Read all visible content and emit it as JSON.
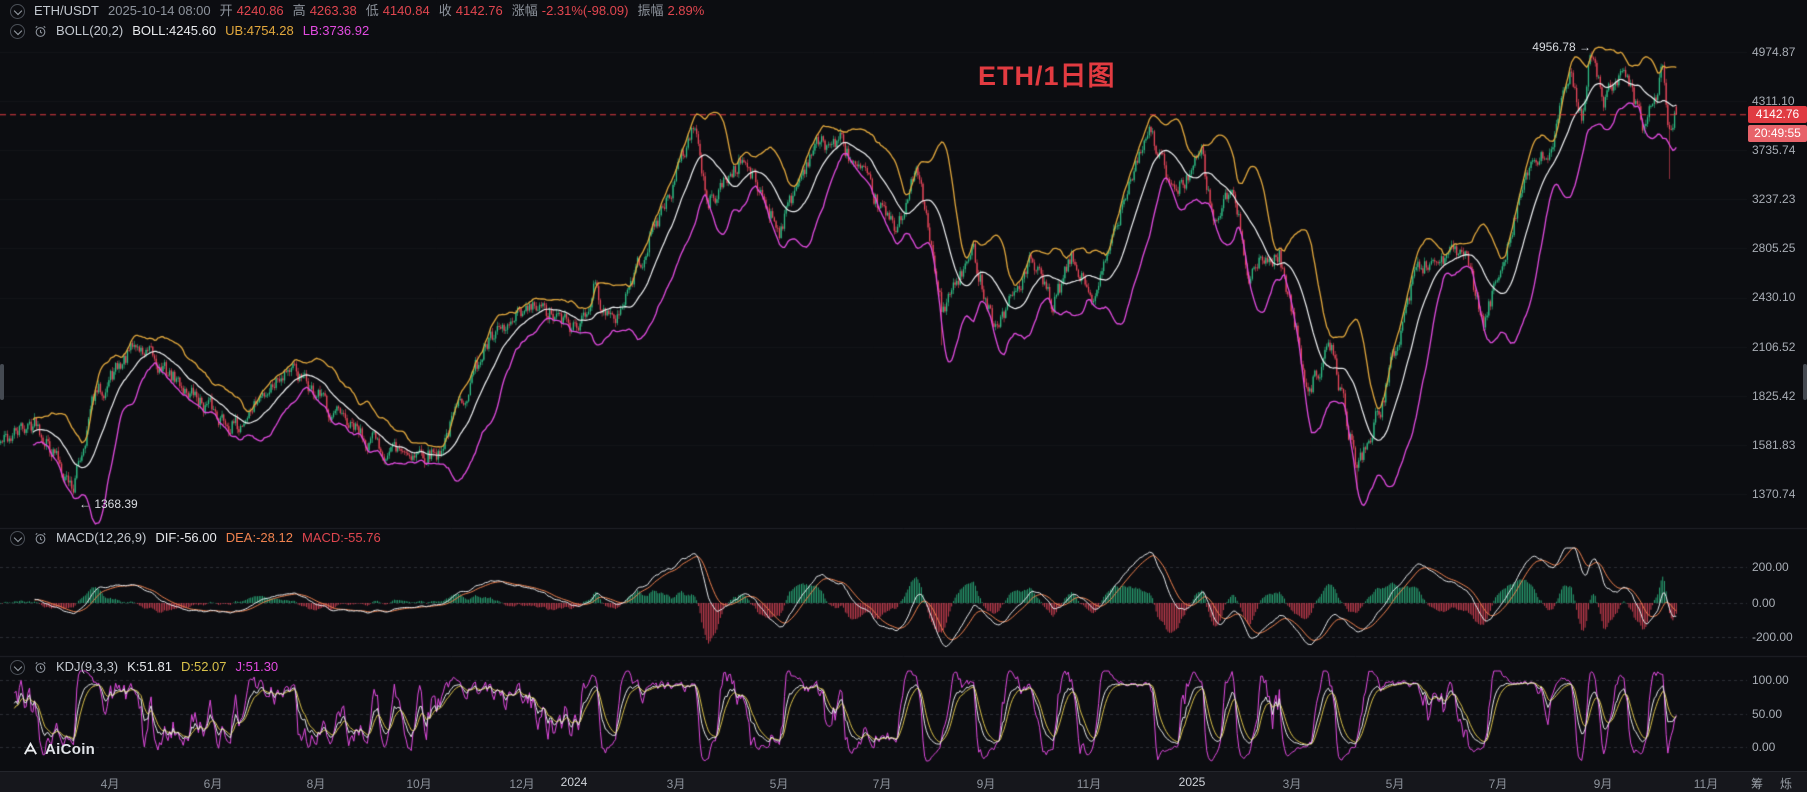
{
  "header": {
    "symbol": "ETH/USDT",
    "datetime": "2025-10-14 08:00",
    "fields": [
      {
        "label": "开",
        "value": "4240.86"
      },
      {
        "label": "高",
        "value": "4263.38"
      },
      {
        "label": "低",
        "value": "4140.84"
      },
      {
        "label": "收",
        "value": "4142.76"
      },
      {
        "label": "涨幅",
        "value": "-2.31%(-98.09)"
      },
      {
        "label": "振幅",
        "value": "2.89%"
      }
    ]
  },
  "boll": {
    "name": "BOLL(20,2)",
    "mid": "BOLL:4245.60",
    "ub": "UB:4754.28",
    "lb": "LB:3736.92"
  },
  "macd": {
    "name": "MACD(12,26,9)",
    "dif": "DIF:-56.00",
    "dea": "DEA:-28.12",
    "hist": "MACD:-55.76",
    "axis": [
      "200.00",
      "0.00",
      "-200.00"
    ]
  },
  "kdj": {
    "name": "KDJ(9,3,3)",
    "k": "K:51.81",
    "d": "D:52.07",
    "j": "J:51.30",
    "axis": [
      "100.00",
      "50.00",
      "0.00"
    ]
  },
  "title": "ETH/1日图",
  "price_axis": {
    "labels": [
      "4974.87",
      "4311.10",
      "3735.74",
      "3237.23",
      "2805.25",
      "2430.10",
      "2106.52",
      "1825.42",
      "1581.83",
      "1370.74"
    ],
    "current_price": "4142.76",
    "countdown": "20:49:55"
  },
  "markers": {
    "high_label": "4956.78 →",
    "low_label": "← 1368.39"
  },
  "time_axis": {
    "labels": [
      {
        "text": "4月",
        "date": "2023-04-01"
      },
      {
        "text": "6月",
        "date": "2023-06-01"
      },
      {
        "text": "8月",
        "date": "2023-08-01"
      },
      {
        "text": "10月",
        "date": "2023-10-01"
      },
      {
        "text": "12月",
        "date": "2023-12-01"
      },
      {
        "text": "2024",
        "date": "2024-01-01"
      },
      {
        "text": "3月",
        "date": "2024-03-01"
      },
      {
        "text": "5月",
        "date": "2024-05-01"
      },
      {
        "text": "7月",
        "date": "2024-07-01"
      },
      {
        "text": "9月",
        "date": "2024-09-01"
      },
      {
        "text": "11月",
        "date": "2024-11-01"
      },
      {
        "text": "2025",
        "date": "2025-01-01"
      },
      {
        "text": "3月",
        "date": "2025-03-01"
      },
      {
        "text": "5月",
        "date": "2025-05-01"
      },
      {
        "text": "7月",
        "date": "2025-07-01"
      },
      {
        "text": "9月",
        "date": "2025-09-01"
      },
      {
        "text": "11月",
        "date": "2025-11-01"
      }
    ],
    "tools": [
      "筹",
      "烁"
    ]
  },
  "logo": {
    "text": "AiCoin"
  },
  "chart_data": {
    "type": "candlestick",
    "title": "ETH/1日图",
    "symbol": "ETH/USDT",
    "interval": "1日",
    "scale": "log",
    "date_range": [
      "2023-01-26",
      "2025-10-14"
    ],
    "y_axis_ticks": [
      4974.87,
      4311.1,
      3735.74,
      3237.23,
      2805.25,
      2430.1,
      2106.52,
      1825.42,
      1581.83,
      1370.74
    ],
    "current_candle": {
      "open": 4240.86,
      "high": 4263.38,
      "low": 4140.84,
      "close": 4142.76,
      "change_pct": -2.31,
      "change_abs": -98.09,
      "amplitude_pct": 2.89
    },
    "marked_high": {
      "date": "2025-08-24",
      "price": 4956.78
    },
    "marked_low": {
      "date": "2023-03-10",
      "price": 1368.39
    },
    "indicators": {
      "boll": {
        "params": [
          20,
          2
        ],
        "mid": 4245.6,
        "ub": 4754.28,
        "lb": 3736.92
      },
      "macd": {
        "params": [
          12,
          26,
          9
        ],
        "dif": -56.0,
        "dea": -28.12,
        "macd": -55.76,
        "axis": [
          200,
          0,
          -200
        ]
      },
      "kdj": {
        "params": [
          9,
          3,
          3
        ],
        "k": 51.81,
        "d": 52.07,
        "j": 51.3,
        "axis": [
          100,
          50,
          0
        ]
      }
    },
    "price_anchors": [
      [
        "2023-01-26",
        1590
      ],
      [
        "2023-02-16",
        1700
      ],
      [
        "2023-03-10",
        1400
      ],
      [
        "2023-03-22",
        1810
      ],
      [
        "2023-04-16",
        2110
      ],
      [
        "2023-05-25",
        1790
      ],
      [
        "2023-06-15",
        1660
      ],
      [
        "2023-07-14",
        2000
      ],
      [
        "2023-08-17",
        1680
      ],
      [
        "2023-09-11",
        1560
      ],
      [
        "2023-10-12",
        1545
      ],
      [
        "2023-11-09",
        2110
      ],
      [
        "2023-12-08",
        2360
      ],
      [
        "2024-01-03",
        2210
      ],
      [
        "2024-01-12",
        2520
      ],
      [
        "2024-01-23",
        2240
      ],
      [
        "2024-02-28",
        3380
      ],
      [
        "2024-03-12",
        4070
      ],
      [
        "2024-03-19",
        3180
      ],
      [
        "2024-04-09",
        3650
      ],
      [
        "2024-05-01",
        2970
      ],
      [
        "2024-05-21",
        3790
      ],
      [
        "2024-06-06",
        3830
      ],
      [
        "2024-07-08",
        2960
      ],
      [
        "2024-07-22",
        3520
      ],
      [
        "2024-08-05",
        2340
      ],
      [
        "2024-08-24",
        2770
      ],
      [
        "2024-09-06",
        2230
      ],
      [
        "2024-09-27",
        2690
      ],
      [
        "2024-10-10",
        2370
      ],
      [
        "2024-10-21",
        2720
      ],
      [
        "2024-11-04",
        2400
      ],
      [
        "2024-11-23",
        3400
      ],
      [
        "2024-12-06",
        4000
      ],
      [
        "2024-12-20",
        3280
      ],
      [
        "2025-01-06",
        3680
      ],
      [
        "2025-01-13",
        3020
      ],
      [
        "2025-01-24",
        3320
      ],
      [
        "2025-02-03",
        2630
      ],
      [
        "2025-02-21",
        2760
      ],
      [
        "2025-03-10",
        1870
      ],
      [
        "2025-03-24",
        2090
      ],
      [
        "2025-04-08",
        1480
      ],
      [
        "2025-04-22",
        1760
      ],
      [
        "2025-05-13",
        2650
      ],
      [
        "2025-06-10",
        2790
      ],
      [
        "2025-06-22",
        2230
      ],
      [
        "2025-07-17",
        3480
      ],
      [
        "2025-07-31",
        3700
      ],
      [
        "2025-08-13",
        4700
      ],
      [
        "2025-08-19",
        4150
      ],
      [
        "2025-08-24",
        4900
      ],
      [
        "2025-09-01",
        4350
      ],
      [
        "2025-09-13",
        4650
      ],
      [
        "2025-09-25",
        3980
      ],
      [
        "2025-10-06",
        4700
      ],
      [
        "2025-10-10",
        3950
      ],
      [
        "2025-10-14",
        4142.76
      ]
    ],
    "key_candles": [
      {
        "date": "2023-03-10",
        "low": 1368.39
      },
      {
        "date": "2024-08-05",
        "low": 2115
      },
      {
        "date": "2025-04-08",
        "low": 1386
      },
      {
        "date": "2025-08-24",
        "high": 4956.78
      },
      {
        "date": "2025-10-10",
        "low": 3435
      },
      {
        "date": "2025-10-14",
        "open": 4240.86,
        "high": 4263.38,
        "low": 4140.84,
        "close": 4142.76
      }
    ],
    "palette": {
      "up": "#2ebd85",
      "down": "#e8465a",
      "boll_mid": "#f0f2f4",
      "boll_ub": "#e2a83d",
      "boll_lb": "#e24be0",
      "dif": "#e9ebee",
      "dea": "#f0824f",
      "hist_up": "#2ebd85",
      "hist_down": "#e8465a",
      "k": "#e9ebee",
      "d": "#d9c14a",
      "j": "#e24be0",
      "price_line": "#e03b42",
      "grid": "#2b2e34",
      "separator": "#202229"
    }
  }
}
